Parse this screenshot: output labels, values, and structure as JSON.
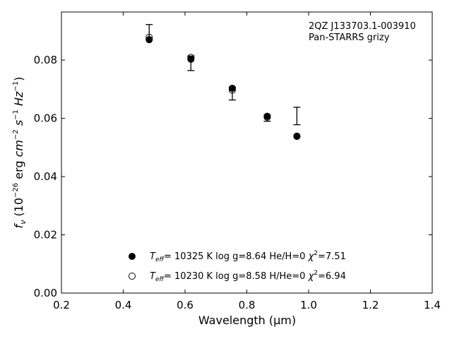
{
  "chart_data": {
    "type": "scatter",
    "xlabel": "Wavelength (μm)",
    "ylabel_main": "f",
    "ylabel_sub": "ν",
    "ylabel_rest": " (10",
    "ylabel_exp1": "−26",
    "ylabel_erg": " erg ",
    "ylabel_cm": "cm",
    "ylabel_exp2": "−2",
    "ylabel_s": " s",
    "ylabel_exp3": "−1",
    "ylabel_hz": " Hz",
    "ylabel_exp4": "−1",
    "ylabel_close": ")",
    "xlim": [
      0.2,
      1.4
    ],
    "ylim": [
      0.0,
      0.0965
    ],
    "xticks": [
      "0.2",
      "0.4",
      "0.6",
      "0.8",
      "1.0",
      "1.2",
      "1.4"
    ],
    "yticks": [
      "0.00",
      "0.02",
      "0.04",
      "0.06",
      "0.08"
    ],
    "annotation": [
      "2QZ J133703.1-003910",
      "Pan-STARRS grizy"
    ],
    "observed": {
      "x": [
        0.484,
        0.619,
        0.753,
        0.866,
        0.962
      ],
      "y": [
        0.0897,
        0.0789,
        0.0685,
        0.0601,
        0.0608
      ],
      "yerr": [
        0.0025,
        0.0025,
        0.0022,
        0.0011,
        0.003
      ]
    },
    "series": [
      {
        "name": "Teff= 10325 K  log g=8.64  He/H=0  χ2=7.51",
        "marker": "filled",
        "x": [
          0.484,
          0.619,
          0.753,
          0.866,
          0.962
        ],
        "y": [
          0.087,
          0.0803,
          0.0703,
          0.0607,
          0.0539
        ]
      },
      {
        "name": "Teff= 10230 K  log g=8.58  H/He=0  χ2=6.94",
        "marker": "open",
        "x": [
          0.484,
          0.619,
          0.753,
          0.866,
          0.962
        ],
        "y": [
          0.0878,
          0.0809,
          0.0697,
          0.0604,
          0.0538
        ]
      }
    ],
    "legend": [
      {
        "T": "T",
        "eff": "eff",
        "rest": "= 10325 K  log g=8.64  He/H=0  ",
        "chi": "χ",
        "sup": "2",
        "val": "=7.51"
      },
      {
        "T": "T",
        "eff": "eff",
        "rest": "= 10230 K  log g=8.58  H/He=0  ",
        "chi": "χ",
        "sup": "2",
        "val": "=6.94"
      }
    ],
    "legend_placement": "lower-center",
    "grid": false,
    "colors": {
      "marker": "#000000",
      "background": "#ffffff"
    }
  }
}
